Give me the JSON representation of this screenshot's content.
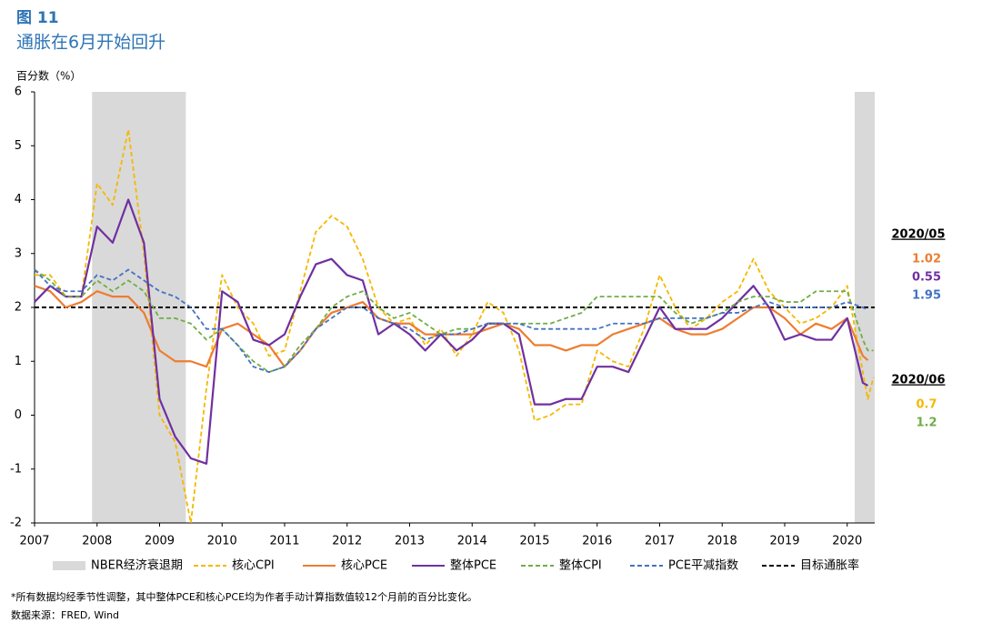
{
  "chart_data": {
    "type": "line",
    "figure_label": "图 11",
    "title": "通胀在6月开始回升",
    "ylabel": "百分数（%）",
    "x": [
      2007,
      2007.25,
      2007.5,
      2007.75,
      2008,
      2008.25,
      2008.5,
      2008.75,
      2009,
      2009.25,
      2009.5,
      2009.75,
      2010,
      2010.25,
      2010.5,
      2010.75,
      2011,
      2011.25,
      2011.5,
      2011.75,
      2012,
      2012.25,
      2012.5,
      2012.75,
      2013,
      2013.25,
      2013.5,
      2013.75,
      2014,
      2014.25,
      2014.5,
      2014.75,
      2015,
      2015.25,
      2015.5,
      2015.75,
      2016,
      2016.25,
      2016.5,
      2016.75,
      2017,
      2017.25,
      2017.5,
      2017.75,
      2018,
      2018.25,
      2018.5,
      2018.75,
      2019,
      2019.25,
      2019.5,
      2019.75,
      2020,
      2020.25,
      2020.33,
      2020.42
    ],
    "xlim": [
      2007,
      2020.44
    ],
    "xticks": [
      2007,
      2008,
      2009,
      2010,
      2011,
      2012,
      2013,
      2014,
      2015,
      2016,
      2017,
      2018,
      2019,
      2020
    ],
    "ylim": [
      -2,
      6
    ],
    "yticks": [
      -2,
      -1,
      0,
      1,
      2,
      3,
      4,
      5,
      6
    ],
    "recessions": {
      "name": "NBER经济衰退期",
      "color": "#d9d9d9",
      "spans": [
        [
          2007.92,
          2009.42
        ],
        [
          2020.12,
          2020.44
        ]
      ]
    },
    "series": [
      {
        "name": "核心CPI",
        "color": "#f5b800",
        "dashed": true,
        "values": [
          2.6,
          2.6,
          2.2,
          2.2,
          4.3,
          3.9,
          5.3,
          3.0,
          0.0,
          -0.5,
          -2.0,
          0.5,
          2.6,
          2.0,
          1.7,
          1.1,
          1.2,
          2.3,
          3.4,
          3.7,
          3.5,
          2.9,
          2.0,
          1.7,
          1.8,
          1.3,
          1.6,
          1.1,
          1.5,
          2.1,
          1.9,
          1.2,
          -0.1,
          0.0,
          0.2,
          0.2,
          1.2,
          1.0,
          0.9,
          1.6,
          2.6,
          2.0,
          1.6,
          1.8,
          2.1,
          2.3,
          2.9,
          2.3,
          2.0,
          1.7,
          1.8,
          2.0,
          2.4,
          0.8,
          0.3,
          0.7
        ]
      },
      {
        "name": "核心PCE",
        "color": "#ed7d31",
        "dashed": false,
        "values": [
          2.4,
          2.3,
          2.0,
          2.1,
          2.3,
          2.2,
          2.2,
          1.9,
          1.2,
          1.0,
          1.0,
          0.9,
          1.6,
          1.7,
          1.5,
          1.3,
          0.9,
          1.2,
          1.6,
          1.9,
          2.0,
          2.1,
          1.8,
          1.7,
          1.7,
          1.5,
          1.5,
          1.5,
          1.5,
          1.6,
          1.7,
          1.6,
          1.3,
          1.3,
          1.2,
          1.3,
          1.3,
          1.5,
          1.6,
          1.7,
          1.8,
          1.6,
          1.5,
          1.5,
          1.6,
          1.8,
          2.0,
          2.0,
          1.8,
          1.5,
          1.7,
          1.6,
          1.8,
          1.1,
          1.02,
          null
        ]
      },
      {
        "name": "整体PCE",
        "color": "#7030a0",
        "dashed": false,
        "values": [
          2.1,
          2.4,
          2.2,
          2.2,
          3.5,
          3.2,
          4.0,
          3.2,
          0.3,
          -0.4,
          -0.8,
          -0.9,
          2.3,
          2.1,
          1.4,
          1.3,
          1.5,
          2.2,
          2.8,
          2.9,
          2.6,
          2.5,
          1.5,
          1.7,
          1.5,
          1.2,
          1.5,
          1.2,
          1.4,
          1.7,
          1.7,
          1.5,
          0.2,
          0.2,
          0.3,
          0.3,
          0.9,
          0.9,
          0.8,
          1.4,
          2.0,
          1.6,
          1.6,
          1.6,
          1.8,
          2.1,
          2.4,
          2.0,
          1.4,
          1.5,
          1.4,
          1.4,
          1.8,
          0.6,
          0.55,
          null
        ]
      },
      {
        "name": "整体CPI",
        "color": "#70ad47",
        "dashed": true,
        "values": [
          2.7,
          2.5,
          2.2,
          2.2,
          2.5,
          2.3,
          2.5,
          2.3,
          1.8,
          1.8,
          1.7,
          1.4,
          1.6,
          1.3,
          1.0,
          0.8,
          0.9,
          1.3,
          1.6,
          2.0,
          2.2,
          2.3,
          2.0,
          1.8,
          1.9,
          1.7,
          1.5,
          1.6,
          1.6,
          1.7,
          1.7,
          1.7,
          1.7,
          1.7,
          1.8,
          1.9,
          2.2,
          2.2,
          2.2,
          2.2,
          2.2,
          1.9,
          1.7,
          1.8,
          1.9,
          2.1,
          2.2,
          2.2,
          2.1,
          2.1,
          2.3,
          2.3,
          2.3,
          1.4,
          1.2,
          1.2
        ]
      },
      {
        "name": "PCE平减指数",
        "color": "#4472c4",
        "dashed": true,
        "values": [
          2.7,
          2.4,
          2.3,
          2.3,
          2.6,
          2.5,
          2.7,
          2.5,
          2.3,
          2.2,
          2.0,
          1.6,
          1.6,
          1.3,
          0.9,
          0.8,
          0.9,
          1.2,
          1.6,
          1.8,
          2.0,
          2.0,
          1.8,
          1.7,
          1.6,
          1.4,
          1.5,
          1.5,
          1.6,
          1.7,
          1.7,
          1.7,
          1.6,
          1.6,
          1.6,
          1.6,
          1.6,
          1.7,
          1.7,
          1.7,
          1.8,
          1.8,
          1.8,
          1.8,
          1.9,
          1.9,
          2.0,
          2.1,
          2.0,
          2.0,
          2.0,
          2.0,
          2.1,
          2.0,
          1.95,
          null
        ]
      }
    ],
    "target": {
      "name": "目标通胀率",
      "value": 2,
      "color": "#000000"
    },
    "annotations": [
      {
        "label": "2020/05",
        "items": [
          {
            "value": 1.02,
            "color": "#ed7d31"
          },
          {
            "value": 0.55,
            "color": "#7030a0"
          },
          {
            "value": 1.95,
            "color": "#4472c4"
          }
        ]
      },
      {
        "label": "2020/06",
        "items": [
          {
            "value": 0.7,
            "color": "#f5b800"
          },
          {
            "value": 1.2,
            "color": "#70ad47"
          }
        ]
      }
    ],
    "notes": [
      "*所有数据均经季节性调整，其中整体PCE和核心PCE均为作者手动计算指数值较12个月前的百分比变化。",
      "数据来源：FRED, Wind"
    ]
  }
}
